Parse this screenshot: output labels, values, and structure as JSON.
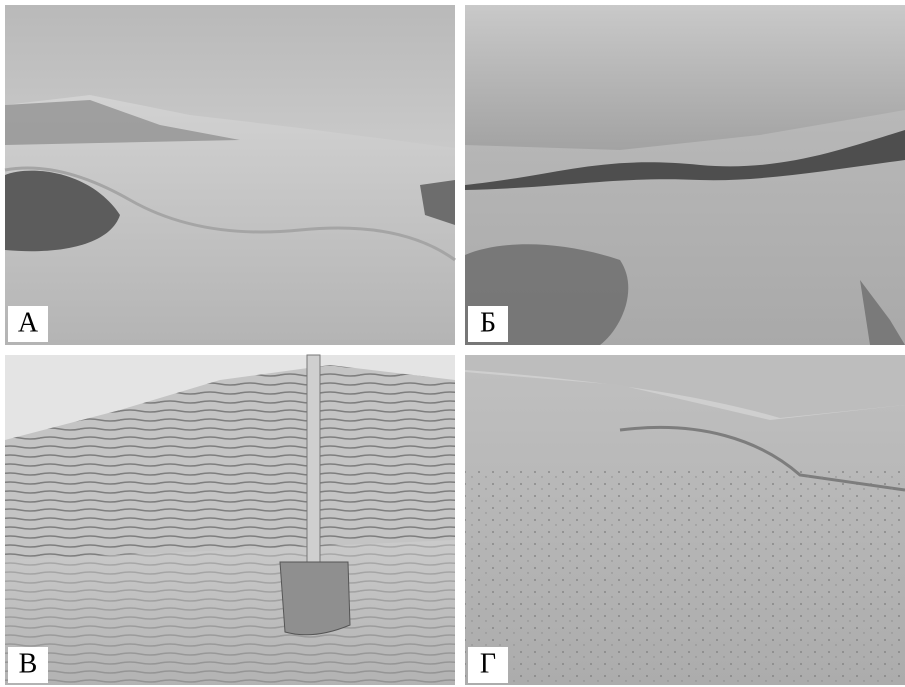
{
  "panels": [
    {
      "label": "А"
    },
    {
      "label": "Б"
    },
    {
      "label": "В"
    },
    {
      "label": "Г"
    }
  ]
}
